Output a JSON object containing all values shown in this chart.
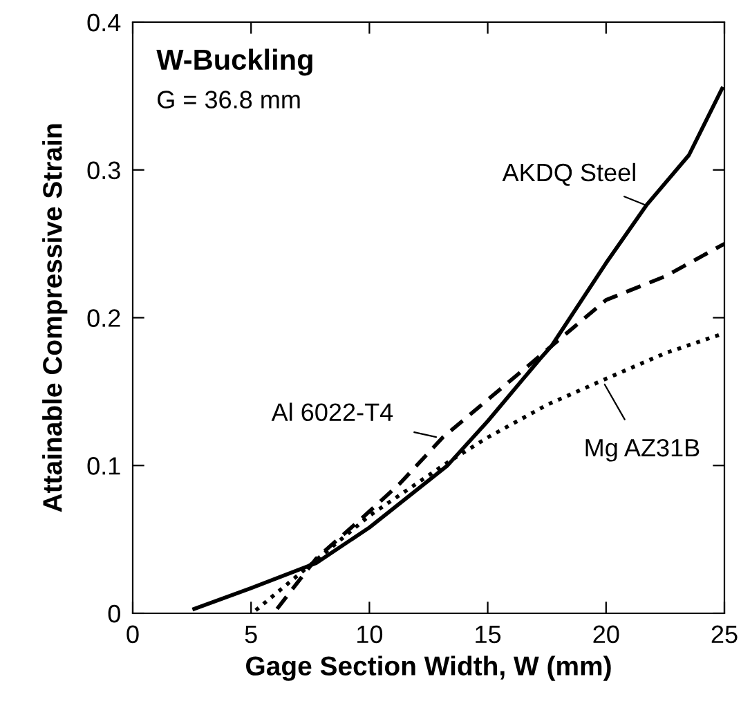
{
  "chart_data": {
    "type": "line",
    "title": "W-Buckling",
    "subtitle": "G = 36.8 mm",
    "xlabel": "Gage Section Width, W (mm)",
    "ylabel": "Attainable Compressive Strain",
    "xlim": [
      0,
      25
    ],
    "ylim": [
      0,
      0.4
    ],
    "xticks": [
      0,
      5,
      10,
      15,
      20,
      25
    ],
    "yticks": [
      0,
      0.1,
      0.2,
      0.3,
      0.4
    ],
    "grid": false,
    "legend": false,
    "marker": "none",
    "series": [
      {
        "color": "#000000",
        "line_style": "solid",
        "x": [
          2.6,
          5,
          7.75,
          10,
          13.3,
          15,
          17.2,
          17.7,
          20,
          21.7,
          23.5,
          24.9
        ],
        "values": [
          0.003,
          0.017,
          0.034,
          0.058,
          0.1,
          0.13,
          0.172,
          0.181,
          0.237,
          0.276,
          0.31,
          0.355
        ]
      },
      {
        "color": "#000000",
        "line_style": "dashed",
        "x": [
          6.1,
          7.75,
          9.8,
          11.3,
          13.1,
          16.6,
          20,
          22.5,
          25
        ],
        "values": [
          0.003,
          0.037,
          0.066,
          0.088,
          0.119,
          0.166,
          0.212,
          0.228,
          0.25
        ]
      },
      {
        "color": "#000000",
        "line_style": "dotted",
        "x": [
          5.2,
          7.75,
          10,
          13.3,
          15,
          17.5,
          19.9,
          22.5,
          24.9
        ],
        "values": [
          0.002,
          0.036,
          0.066,
          0.102,
          0.119,
          0.141,
          0.158,
          0.176,
          0.189
        ]
      }
    ],
    "annotations": [
      {
        "text": "AKDQ Steel",
        "x": 21.7,
        "y": 0.276
      },
      {
        "text": "Al 6022-T4",
        "x": 12.9,
        "y": 0.119
      },
      {
        "text": "Mg AZ31B",
        "x": 19.9,
        "y": 0.156
      }
    ]
  }
}
